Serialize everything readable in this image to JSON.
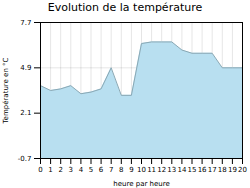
{
  "chart_data": {
    "type": "area",
    "title": "Evolution de la température",
    "xlabel": "heure par heure",
    "ylabel": "Température en °C",
    "x": [
      0,
      1,
      2,
      3,
      4,
      5,
      6,
      7,
      8,
      9,
      10,
      11,
      12,
      13,
      14,
      15,
      16,
      17,
      18,
      19,
      20
    ],
    "values": [
      3.8,
      3.5,
      3.6,
      3.8,
      3.3,
      3.4,
      3.6,
      4.9,
      3.2,
      3.2,
      6.4,
      6.5,
      6.5,
      6.5,
      6.0,
      5.8,
      5.8,
      5.8,
      4.9,
      4.9,
      4.9
    ],
    "color": "#b8dff0",
    "xlim": [
      0,
      20
    ],
    "xticks": [
      0,
      1,
      2,
      3,
      4,
      5,
      6,
      7,
      8,
      9,
      10,
      11,
      12,
      13,
      14,
      15,
      16,
      17,
      18,
      19,
      20
    ],
    "ylim": [
      -0.7,
      7.7
    ],
    "yticks": [
      -0.7,
      2.1,
      4.9,
      7.7
    ],
    "grid": true
  }
}
